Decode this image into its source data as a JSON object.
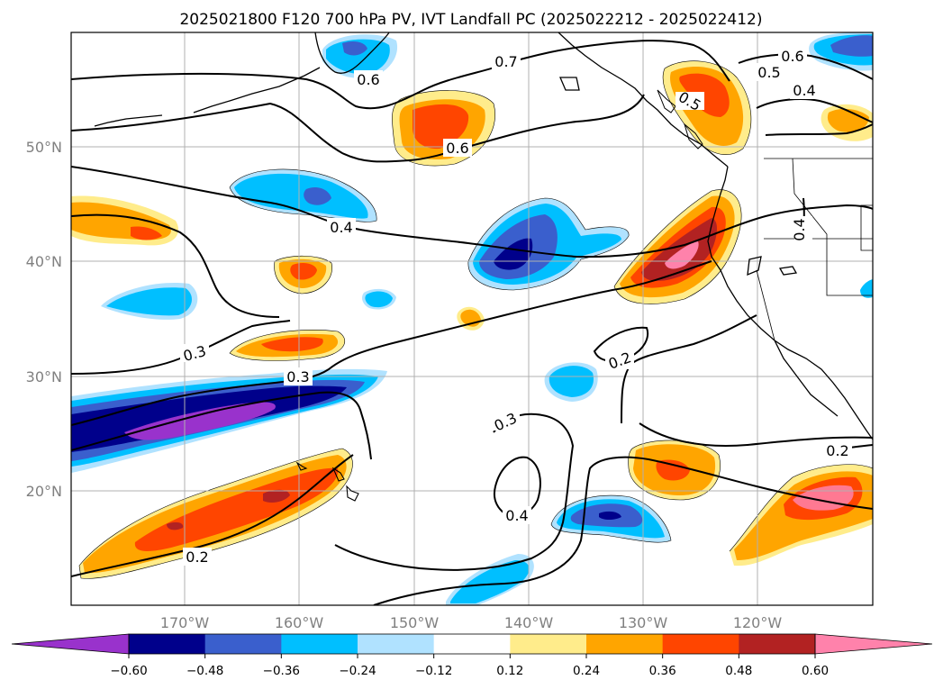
{
  "title": "2025021800 F120 700 hPa PV, IVT Landfall PC (2025022212 - 2025022412)",
  "map": {
    "lon_ticks": [
      "170°W",
      "160°W",
      "150°W",
      "140°W",
      "130°W",
      "120°W"
    ],
    "lat_ticks": [
      "50°N",
      "40°N",
      "30°N",
      "20°N"
    ],
    "grid": true,
    "contour_labels": [
      "0.7",
      "0.6",
      "0.6",
      "0.5",
      "0.6",
      "0.4",
      "0.4",
      "0.4",
      "0.3",
      "0.3",
      "0.3",
      "0.2",
      "0.4",
      "0.2",
      "0.2"
    ]
  },
  "colorbar": {
    "ticks": [
      "−0.60",
      "−0.48",
      "−0.36",
      "−0.24",
      "−0.12",
      "0.12",
      "0.24",
      "0.36",
      "0.48",
      "0.60"
    ],
    "colors": [
      "#9932cc",
      "#00008b",
      "#3a5fcd",
      "#00bfff",
      "#b0e2ff",
      "#ffffff",
      "#ffec8b",
      "#ffa500",
      "#ff4500",
      "#b22222",
      "#ff82ab"
    ]
  }
}
